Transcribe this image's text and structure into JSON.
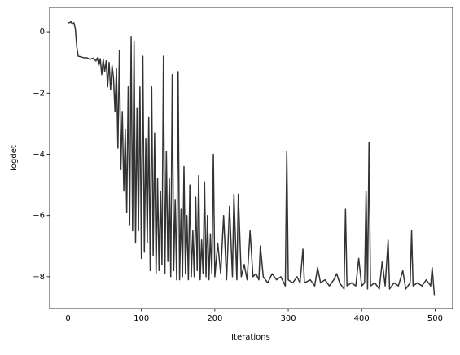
{
  "chart_data": {
    "type": "line",
    "xlabel": "Iterations",
    "ylabel": "logdet",
    "color": "#333333",
    "xlim": [
      -24.95,
      523.95
    ],
    "ylim": [
      -9.04,
      0.8
    ],
    "xticks": [
      0,
      100,
      200,
      300,
      400,
      500
    ],
    "yticks": [
      {
        "value": -8,
        "label": "−8"
      },
      {
        "value": -6,
        "label": "−6"
      },
      {
        "value": -4,
        "label": "−4"
      },
      {
        "value": -2,
        "label": "−2"
      },
      0
    ],
    "x": [
      0,
      2,
      4,
      6,
      8,
      10,
      12,
      14,
      18,
      22,
      26,
      30,
      34,
      38,
      40,
      42,
      44,
      46,
      48,
      50,
      52,
      54,
      56,
      58,
      60,
      62,
      64,
      66,
      68,
      70,
      72,
      74,
      76,
      78,
      80,
      82,
      84,
      86,
      88,
      90,
      92,
      94,
      96,
      98,
      100,
      102,
      104,
      106,
      108,
      110,
      112,
      114,
      116,
      118,
      120,
      122,
      124,
      126,
      128,
      130,
      132,
      134,
      136,
      138,
      140,
      142,
      144,
      146,
      148,
      150,
      152,
      154,
      156,
      158,
      160,
      162,
      164,
      166,
      168,
      170,
      172,
      174,
      176,
      178,
      180,
      182,
      184,
      186,
      188,
      190,
      192,
      194,
      196,
      198,
      200,
      204,
      208,
      212,
      216,
      220,
      224,
      226,
      230,
      232,
      236,
      240,
      244,
      248,
      252,
      256,
      260,
      262,
      266,
      272,
      278,
      284,
      290,
      296,
      298,
      300,
      306,
      312,
      316,
      320,
      322,
      330,
      336,
      340,
      344,
      350,
      356,
      362,
      366,
      370,
      376,
      378,
      380,
      386,
      392,
      396,
      400,
      404,
      406,
      408,
      410,
      412,
      418,
      424,
      428,
      432,
      436,
      438,
      444,
      450,
      456,
      460,
      466,
      468,
      470,
      476,
      482,
      488,
      494,
      496,
      499
    ],
    "values": [
      0.3,
      0.3,
      0.33,
      0.25,
      0.3,
      0.1,
      -0.5,
      -0.8,
      -0.82,
      -0.85,
      -0.85,
      -0.9,
      -0.86,
      -0.95,
      -0.85,
      -1.1,
      -0.88,
      -1.4,
      -0.9,
      -1.3,
      -0.95,
      -1.8,
      -1.0,
      -1.9,
      -1.1,
      -1.5,
      -2.6,
      -1.2,
      -3.8,
      -0.6,
      -4.5,
      -2.6,
      -5.2,
      -3.2,
      -5.9,
      -1.8,
      -6.3,
      -0.15,
      -6.5,
      -0.3,
      -6.9,
      -2.5,
      -6.5,
      -1.8,
      -7.4,
      -0.8,
      -7.2,
      -3.5,
      -6.9,
      -2.8,
      -7.8,
      -1.8,
      -7.3,
      -3.3,
      -7.9,
      -4.8,
      -7.8,
      -5.2,
      -7.6,
      -0.8,
      -7.9,
      -3.9,
      -7.5,
      -4.8,
      -8.0,
      -1.4,
      -7.8,
      -5.5,
      -8.1,
      -1.3,
      -8.1,
      -5.8,
      -8.0,
      -4.4,
      -7.9,
      -6.0,
      -8.1,
      -5.0,
      -8.0,
      -6.5,
      -8.0,
      -5.4,
      -7.8,
      -4.7,
      -8.1,
      -6.8,
      -7.9,
      -4.9,
      -8.0,
      -6.0,
      -8.1,
      -6.6,
      -7.9,
      -4.0,
      -8.0,
      -6.9,
      -7.9,
      -6.0,
      -8.1,
      -5.7,
      -8.0,
      -5.3,
      -8.1,
      -5.3,
      -8.0,
      -7.6,
      -8.1,
      -6.5,
      -8.0,
      -7.9,
      -8.1,
      -7.0,
      -8.0,
      -8.2,
      -7.9,
      -8.1,
      -8.0,
      -8.3,
      -3.9,
      -8.1,
      -8.2,
      -8.0,
      -8.2,
      -7.1,
      -8.2,
      -8.1,
      -8.3,
      -7.7,
      -8.2,
      -8.1,
      -8.3,
      -8.1,
      -7.9,
      -8.2,
      -8.4,
      -5.8,
      -8.3,
      -8.2,
      -8.3,
      -7.4,
      -8.3,
      -8.2,
      -5.2,
      -8.4,
      -3.6,
      -8.3,
      -8.2,
      -8.4,
      -7.5,
      -8.3,
      -6.8,
      -8.4,
      -8.2,
      -8.3,
      -7.8,
      -8.4,
      -8.2,
      -6.5,
      -8.3,
      -8.2,
      -8.3,
      -8.1,
      -8.3,
      -7.7,
      -8.6
    ]
  }
}
